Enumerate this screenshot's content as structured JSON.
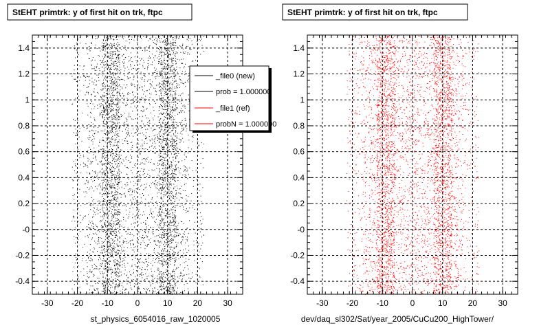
{
  "chart_data": [
    {
      "type": "scatter",
      "title": "StEHT primtrk: y of first hit on trk, ftpc",
      "xlabel": "st_physics_6054016_raw_1020005",
      "xlim": [
        -35,
        35
      ],
      "ylim": [
        -0.5,
        1.5
      ],
      "x_ticks": [
        -30,
        -20,
        -10,
        0,
        10,
        20,
        30
      ],
      "x_tick_labels": [
        "-30",
        "-20",
        "-10",
        "0",
        "10",
        "20",
        "30"
      ],
      "y_ticks": [
        -0.4,
        -0.2,
        0,
        0.2,
        0.4,
        0.6,
        0.8,
        1,
        1.2,
        1.4
      ],
      "y_tick_labels": [
        "-0.4",
        "-0.2",
        "-0",
        "0.2",
        "0.4",
        "0.6",
        "0.8",
        "1",
        "1.2",
        "1.4"
      ],
      "grid": true,
      "marker_color": "#000000",
      "legend": {
        "placement": "top-right",
        "entries": [
          {
            "label": "_file0 (new)",
            "color": "#000000"
          },
          {
            "label": "prob = 1.000000",
            "color": "#000000"
          },
          {
            "label": "_file1 (ref)",
            "color": "#ff0000"
          },
          {
            "label": "probN = 1.000000",
            "color": "#ff0000"
          }
        ]
      },
      "series": [
        {
          "x_range": [
            -22,
            22
          ],
          "y_range": [
            -0.5,
            1.5
          ],
          "dense_bands": [
            [
              -12,
              -6
            ],
            [
              7,
              13
            ]
          ],
          "point_count": 5200
        }
      ]
    },
    {
      "type": "scatter",
      "title": "StEHT primtrk: y of first hit on trk, ftpc",
      "xlabel": "dev/daq_sl302/Sat/year_2005/CuCu200_HighTower/",
      "xlim": [
        -35,
        35
      ],
      "ylim": [
        -0.5,
        1.5
      ],
      "x_ticks": [
        -30,
        -20,
        -10,
        0,
        10,
        20,
        30
      ],
      "x_tick_labels": [
        "-30",
        "-20",
        "-10",
        "0",
        "10",
        "20",
        "30"
      ],
      "y_ticks": [
        -0.4,
        -0.2,
        0,
        0.2,
        0.4,
        0.6,
        0.8,
        1,
        1.2,
        1.4
      ],
      "y_tick_labels": [
        "-0.4",
        "-0.2",
        "-0",
        "0.2",
        "0.4",
        "0.6",
        "0.8",
        "1",
        "1.2",
        "1.4"
      ],
      "grid": true,
      "marker_color": "#ff0000",
      "series": [
        {
          "x_range": [
            -22,
            22
          ],
          "y_range": [
            -0.5,
            1.5
          ],
          "dense_bands": [
            [
              -12,
              -6
            ],
            [
              7,
              13
            ]
          ],
          "point_count": 5200
        }
      ]
    }
  ]
}
